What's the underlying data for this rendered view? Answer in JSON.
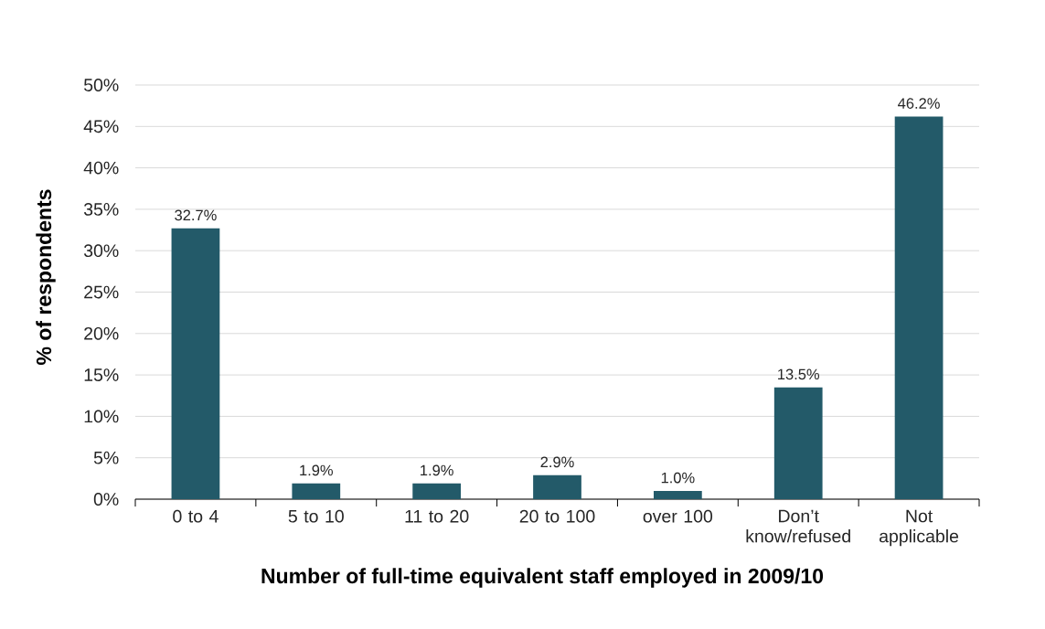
{
  "chart_data": {
    "type": "bar",
    "xlabel": "Number of full-time equivalent staff employed in 2009/10",
    "ylabel": "% of respondents",
    "categories": [
      "0 to 4",
      "5 to 10",
      "11 to 20",
      "20 to 100",
      "over 100",
      "Don’t know/refused",
      "Not applicable"
    ],
    "values": [
      32.7,
      1.9,
      1.9,
      2.9,
      1.0,
      13.5,
      46.2
    ],
    "value_labels": [
      "32.7%",
      "1.9%",
      "1.9%",
      "2.9%",
      "1.0%",
      "13.5%",
      "46.2%"
    ],
    "color": "#235a69",
    "ylim": [
      0,
      50
    ],
    "yticks": [
      {
        "value": 0,
        "label": "0%"
      },
      {
        "value": 5,
        "label": "5%"
      },
      {
        "value": 10,
        "label": "10%"
      },
      {
        "value": 15,
        "label": "15%"
      },
      {
        "value": 20,
        "label": "20%"
      },
      {
        "value": 25,
        "label": "25%"
      },
      {
        "value": 30,
        "label": "30%"
      },
      {
        "value": 35,
        "label": "35%"
      },
      {
        "value": 40,
        "label": "40%"
      },
      {
        "value": 45,
        "label": "45%"
      },
      {
        "value": 50,
        "label": "50%"
      }
    ],
    "grid": "y"
  }
}
